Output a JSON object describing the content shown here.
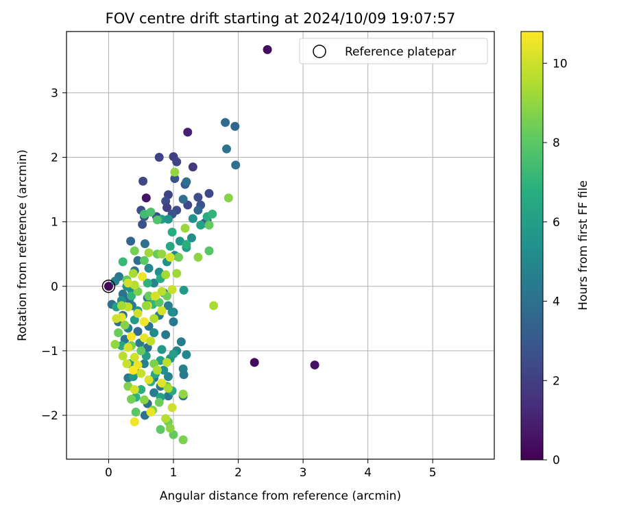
{
  "chart_data": {
    "type": "scatter",
    "title": "FOV centre drift starting at 2024/10/09 19:07:57",
    "xlabel": "Angular distance from reference (arcmin)",
    "ylabel": "Rotation from reference (arcmin)",
    "xlim": [
      -0.65,
      5.95
    ],
    "ylim": [
      -2.68,
      3.95
    ],
    "x_ticks": [
      0,
      1,
      2,
      3,
      4,
      5
    ],
    "y_ticks": [
      -2,
      -1,
      0,
      1,
      2,
      3
    ],
    "grid": true,
    "legend": {
      "position": "top-right",
      "label": "Reference platepar"
    },
    "reference_point": {
      "x": 0,
      "y": 0
    },
    "colorbar": {
      "label": "Hours from first FF file",
      "range": [
        0,
        10.8
      ],
      "ticks": [
        0,
        2,
        4,
        6,
        8,
        10
      ],
      "colormap": "viridis"
    },
    "points": [
      {
        "x": 2.45,
        "y": 3.67,
        "t": 0.3
      },
      {
        "x": 3.18,
        "y": -1.22,
        "t": 0.5
      },
      {
        "x": 2.25,
        "y": -1.18,
        "t": 0.3
      },
      {
        "x": 0.58,
        "y": 1.37,
        "t": 0.6
      },
      {
        "x": 1.22,
        "y": 2.39,
        "t": 1.0
      },
      {
        "x": 0.0,
        "y": 0.0,
        "t": 0.2
      },
      {
        "x": 0.78,
        "y": 2.0,
        "t": 2.1
      },
      {
        "x": 1.0,
        "y": 2.01,
        "t": 2.0
      },
      {
        "x": 1.05,
        "y": 1.93,
        "t": 2.2
      },
      {
        "x": 1.3,
        "y": 1.85,
        "t": 1.8
      },
      {
        "x": 0.53,
        "y": 1.63,
        "t": 2.3
      },
      {
        "x": 1.02,
        "y": 1.67,
        "t": 2.8
      },
      {
        "x": 1.18,
        "y": 1.58,
        "t": 3.0
      },
      {
        "x": 0.92,
        "y": 1.42,
        "t": 2.2
      },
      {
        "x": 0.88,
        "y": 1.32,
        "t": 2.5
      },
      {
        "x": 0.9,
        "y": 1.22,
        "t": 2.0
      },
      {
        "x": 1.38,
        "y": 1.38,
        "t": 2.6
      },
      {
        "x": 1.55,
        "y": 1.44,
        "t": 2.4
      },
      {
        "x": 1.42,
        "y": 1.26,
        "t": 2.8
      },
      {
        "x": 1.22,
        "y": 1.26,
        "t": 2.3
      },
      {
        "x": 1.05,
        "y": 1.18,
        "t": 2.5
      },
      {
        "x": 0.5,
        "y": 1.18,
        "t": 2.6
      },
      {
        "x": 0.55,
        "y": 1.08,
        "t": 3.0
      },
      {
        "x": 0.52,
        "y": 0.96,
        "t": 2.8
      },
      {
        "x": 0.74,
        "y": 1.08,
        "t": 2.4
      },
      {
        "x": 0.98,
        "y": 1.12,
        "t": 2.7
      },
      {
        "x": 1.52,
        "y": 1.02,
        "t": 2.6
      },
      {
        "x": 1.48,
        "y": 0.98,
        "t": 3.1
      },
      {
        "x": 1.38,
        "y": 1.18,
        "t": 3.6
      },
      {
        "x": 1.15,
        "y": 1.35,
        "t": 3.9
      },
      {
        "x": 1.2,
        "y": 1.62,
        "t": 4.0
      },
      {
        "x": 1.8,
        "y": 2.54,
        "t": 3.8
      },
      {
        "x": 1.95,
        "y": 2.48,
        "t": 3.6
      },
      {
        "x": 1.82,
        "y": 2.13,
        "t": 4.1
      },
      {
        "x": 1.96,
        "y": 1.88,
        "t": 3.9
      },
      {
        "x": 0.34,
        "y": 0.7,
        "t": 3.5
      },
      {
        "x": 0.56,
        "y": 0.66,
        "t": 4.0
      },
      {
        "x": 0.45,
        "y": 0.4,
        "t": 3.8
      },
      {
        "x": 0.4,
        "y": 0.24,
        "t": 4.2
      },
      {
        "x": 0.16,
        "y": 0.15,
        "t": 4.4
      },
      {
        "x": 0.1,
        "y": 0.08,
        "t": 4.6
      },
      {
        "x": 0.05,
        "y": -0.28,
        "t": 3.9
      },
      {
        "x": 0.22,
        "y": -0.12,
        "t": 4.1
      },
      {
        "x": 0.32,
        "y": -0.2,
        "t": 3.6
      },
      {
        "x": 0.15,
        "y": -0.55,
        "t": 3.8
      },
      {
        "x": 0.22,
        "y": -0.45,
        "t": 4.0
      },
      {
        "x": 0.36,
        "y": -0.3,
        "t": 4.5
      },
      {
        "x": 0.6,
        "y": -0.18,
        "t": 4.2
      },
      {
        "x": 0.7,
        "y": 0.05,
        "t": 4.8
      },
      {
        "x": 0.85,
        "y": -0.1,
        "t": 4.0
      },
      {
        "x": 0.92,
        "y": -0.3,
        "t": 4.6
      },
      {
        "x": 1.0,
        "y": -0.4,
        "t": 3.9
      },
      {
        "x": 1.0,
        "y": -0.55,
        "t": 4.3
      },
      {
        "x": 0.78,
        "y": -0.45,
        "t": 4.4
      },
      {
        "x": 0.62,
        "y": -0.62,
        "t": 4.1
      },
      {
        "x": 0.45,
        "y": -0.7,
        "t": 3.8
      },
      {
        "x": 0.3,
        "y": -0.65,
        "t": 4.7
      },
      {
        "x": 0.25,
        "y": -0.82,
        "t": 4.2
      },
      {
        "x": 0.48,
        "y": -0.88,
        "t": 4.5
      },
      {
        "x": 0.6,
        "y": -0.95,
        "t": 3.9
      },
      {
        "x": 0.88,
        "y": -0.75,
        "t": 4.3
      },
      {
        "x": 1.05,
        "y": -1.0,
        "t": 4.8
      },
      {
        "x": 1.12,
        "y": -0.86,
        "t": 4.5
      },
      {
        "x": 1.2,
        "y": -1.06,
        "t": 4.9
      },
      {
        "x": 1.15,
        "y": -1.28,
        "t": 4.6
      },
      {
        "x": 1.16,
        "y": -1.37,
        "t": 4.4
      },
      {
        "x": 1.15,
        "y": -1.7,
        "t": 4.2
      },
      {
        "x": 0.92,
        "y": -1.4,
        "t": 4.8
      },
      {
        "x": 0.8,
        "y": -1.55,
        "t": 4.1
      },
      {
        "x": 0.7,
        "y": -1.42,
        "t": 4.0
      },
      {
        "x": 0.55,
        "y": -1.2,
        "t": 4.6
      },
      {
        "x": 0.4,
        "y": -1.3,
        "t": 4.2
      },
      {
        "x": 0.3,
        "y": -1.42,
        "t": 4.4
      },
      {
        "x": 0.56,
        "y": -2.0,
        "t": 4.0
      },
      {
        "x": 0.6,
        "y": -1.82,
        "t": 3.8
      },
      {
        "x": 0.92,
        "y": -1.7,
        "t": 4.3
      },
      {
        "x": 0.7,
        "y": -1.65,
        "t": 4.5
      },
      {
        "x": 0.62,
        "y": 0.28,
        "t": 5.0
      },
      {
        "x": 0.78,
        "y": 0.22,
        "t": 5.2
      },
      {
        "x": 0.9,
        "y": 0.38,
        "t": 5.4
      },
      {
        "x": 1.02,
        "y": 0.48,
        "t": 5.1
      },
      {
        "x": 1.1,
        "y": 0.7,
        "t": 5.6
      },
      {
        "x": 1.28,
        "y": 0.75,
        "t": 5.3
      },
      {
        "x": 1.2,
        "y": 0.6,
        "t": 5.8
      },
      {
        "x": 0.82,
        "y": 1.04,
        "t": 5.9
      },
      {
        "x": 0.92,
        "y": 1.04,
        "t": 5.5
      },
      {
        "x": 1.3,
        "y": 1.05,
        "t": 5.4
      },
      {
        "x": 1.42,
        "y": 0.95,
        "t": 6.2
      },
      {
        "x": 1.52,
        "y": 1.08,
        "t": 6.6
      },
      {
        "x": 1.6,
        "y": 1.12,
        "t": 7.0
      },
      {
        "x": 1.16,
        "y": -0.06,
        "t": 5.8
      },
      {
        "x": 0.98,
        "y": -0.4,
        "t": 5.2
      },
      {
        "x": 0.45,
        "y": -0.38,
        "t": 5.5
      },
      {
        "x": 0.35,
        "y": -0.05,
        "t": 5.0
      },
      {
        "x": 0.28,
        "y": 0.0,
        "t": 5.6
      },
      {
        "x": 0.2,
        "y": -0.22,
        "t": 5.3
      },
      {
        "x": 0.12,
        "y": -0.32,
        "t": 6.0
      },
      {
        "x": 0.4,
        "y": -0.52,
        "t": 5.8
      },
      {
        "x": 0.7,
        "y": -0.72,
        "t": 5.1
      },
      {
        "x": 0.82,
        "y": -0.98,
        "t": 5.7
      },
      {
        "x": 0.95,
        "y": -1.12,
        "t": 5.4
      },
      {
        "x": 0.8,
        "y": -1.15,
        "t": 6.1
      },
      {
        "x": 0.85,
        "y": -1.3,
        "t": 5.3
      },
      {
        "x": 1.0,
        "y": -1.05,
        "t": 6.0
      },
      {
        "x": 0.58,
        "y": -1.08,
        "t": 5.9
      },
      {
        "x": 0.33,
        "y": -1.2,
        "t": 6.2
      },
      {
        "x": 0.38,
        "y": -1.4,
        "t": 5.6
      },
      {
        "x": 0.2,
        "y": -0.92,
        "t": 6.3
      },
      {
        "x": 0.72,
        "y": -1.36,
        "t": 6.4
      },
      {
        "x": 0.65,
        "y": -1.48,
        "t": 6.6
      },
      {
        "x": 0.5,
        "y": -1.6,
        "t": 6.8
      },
      {
        "x": 0.42,
        "y": -1.72,
        "t": 6.9
      },
      {
        "x": 0.8,
        "y": -1.72,
        "t": 6.2
      },
      {
        "x": 0.98,
        "y": -1.62,
        "t": 6.5
      },
      {
        "x": 0.95,
        "y": 0.62,
        "t": 6.4
      },
      {
        "x": 0.98,
        "y": 0.84,
        "t": 6.6
      },
      {
        "x": 1.2,
        "y": 0.65,
        "t": 6.8
      },
      {
        "x": 0.8,
        "y": 0.12,
        "t": 6.6
      },
      {
        "x": 0.6,
        "y": 0.05,
        "t": 6.9
      },
      {
        "x": 0.68,
        "y": -0.28,
        "t": 7.1
      },
      {
        "x": 0.55,
        "y": 1.12,
        "t": 7.4
      },
      {
        "x": 0.65,
        "y": 1.15,
        "t": 7.6
      },
      {
        "x": 0.75,
        "y": 1.03,
        "t": 7.8
      },
      {
        "x": 0.22,
        "y": 0.38,
        "t": 7.2
      },
      {
        "x": 0.35,
        "y": -0.15,
        "t": 7.0
      },
      {
        "x": 1.55,
        "y": 0.55,
        "t": 7.9
      },
      {
        "x": 1.55,
        "y": 0.95,
        "t": 8.2
      },
      {
        "x": 1.85,
        "y": 1.37,
        "t": 8.8
      },
      {
        "x": 1.02,
        "y": 1.77,
        "t": 9.0
      },
      {
        "x": 1.18,
        "y": 0.9,
        "t": 9.1
      },
      {
        "x": 1.38,
        "y": 0.45,
        "t": 8.9
      },
      {
        "x": 1.08,
        "y": 0.45,
        "t": 8.4
      },
      {
        "x": 0.75,
        "y": 0.5,
        "t": 8.2
      },
      {
        "x": 0.55,
        "y": 0.4,
        "t": 8.0
      },
      {
        "x": 0.4,
        "y": 0.55,
        "t": 8.5
      },
      {
        "x": 0.28,
        "y": 0.1,
        "t": 8.1
      },
      {
        "x": 0.45,
        "y": -0.08,
        "t": 8.6
      },
      {
        "x": 0.62,
        "y": -0.15,
        "t": 8.3
      },
      {
        "x": 0.78,
        "y": -0.25,
        "t": 8.0
      },
      {
        "x": 0.9,
        "y": -0.15,
        "t": 8.4
      },
      {
        "x": 1.05,
        "y": 0.2,
        "t": 9.2
      },
      {
        "x": 1.62,
        "y": -0.3,
        "t": 9.4
      },
      {
        "x": 0.15,
        "y": -0.72,
        "t": 8.3
      },
      {
        "x": 0.25,
        "y": -0.6,
        "t": 8.8
      },
      {
        "x": 0.35,
        "y": -0.92,
        "t": 8.5
      },
      {
        "x": 0.5,
        "y": -1.0,
        "t": 8.2
      },
      {
        "x": 0.7,
        "y": -1.2,
        "t": 8.6
      },
      {
        "x": 0.9,
        "y": -1.55,
        "t": 8.0
      },
      {
        "x": 0.78,
        "y": -1.8,
        "t": 8.3
      },
      {
        "x": 0.68,
        "y": -1.92,
        "t": 8.7
      },
      {
        "x": 0.8,
        "y": -2.22,
        "t": 8.1
      },
      {
        "x": 0.92,
        "y": -2.1,
        "t": 8.4
      },
      {
        "x": 1.0,
        "y": -2.3,
        "t": 8.2
      },
      {
        "x": 1.15,
        "y": -2.38,
        "t": 8.6
      },
      {
        "x": 0.95,
        "y": -2.2,
        "t": 8.9
      },
      {
        "x": 0.42,
        "y": -1.95,
        "t": 8.0
      },
      {
        "x": 0.35,
        "y": -1.75,
        "t": 8.5
      },
      {
        "x": 0.55,
        "y": -1.76,
        "t": 8.8
      },
      {
        "x": 1.15,
        "y": -1.67,
        "t": 9.0
      },
      {
        "x": 0.3,
        "y": -1.55,
        "t": 8.7
      },
      {
        "x": 0.1,
        "y": -0.9,
        "t": 9.0
      },
      {
        "x": 0.4,
        "y": 0.02,
        "t": 9.6
      },
      {
        "x": 0.3,
        "y": 0.05,
        "t": 10.0
      },
      {
        "x": 0.52,
        "y": 0.15,
        "t": 10.5
      },
      {
        "x": 0.95,
        "y": 0.45,
        "t": 10.2
      },
      {
        "x": 0.98,
        "y": -0.05,
        "t": 9.9
      },
      {
        "x": 0.82,
        "y": -0.08,
        "t": 9.7
      },
      {
        "x": 0.72,
        "y": -0.15,
        "t": 10.1
      },
      {
        "x": 0.6,
        "y": -0.3,
        "t": 10.4
      },
      {
        "x": 0.45,
        "y": -0.42,
        "t": 10.0
      },
      {
        "x": 0.3,
        "y": -0.32,
        "t": 9.8
      },
      {
        "x": 0.2,
        "y": -0.48,
        "t": 10.3
      },
      {
        "x": 0.55,
        "y": -0.55,
        "t": 10.6
      },
      {
        "x": 0.7,
        "y": -0.5,
        "t": 9.5
      },
      {
        "x": 0.82,
        "y": -0.38,
        "t": 10.1
      },
      {
        "x": 0.35,
        "y": -0.78,
        "t": 10.7
      },
      {
        "x": 0.55,
        "y": -0.8,
        "t": 10.4
      },
      {
        "x": 0.65,
        "y": -0.85,
        "t": 9.8
      },
      {
        "x": 0.3,
        "y": -0.95,
        "t": 10.2
      },
      {
        "x": 0.22,
        "y": -1.08,
        "t": 9.6
      },
      {
        "x": 0.4,
        "y": -1.1,
        "t": 10.0
      },
      {
        "x": 0.45,
        "y": -1.22,
        "t": 10.5
      },
      {
        "x": 0.38,
        "y": -1.3,
        "t": 10.8
      },
      {
        "x": 0.5,
        "y": -1.35,
        "t": 9.9
      },
      {
        "x": 0.62,
        "y": -1.45,
        "t": 10.2
      },
      {
        "x": 0.75,
        "y": -1.3,
        "t": 9.5
      },
      {
        "x": 0.9,
        "y": -1.18,
        "t": 9.7
      },
      {
        "x": 0.82,
        "y": -1.5,
        "t": 10.3
      },
      {
        "x": 0.92,
        "y": -1.58,
        "t": 9.4
      },
      {
        "x": 0.98,
        "y": -1.88,
        "t": 10.0
      },
      {
        "x": 0.88,
        "y": -2.05,
        "t": 9.6
      },
      {
        "x": 0.65,
        "y": -1.95,
        "t": 10.4
      },
      {
        "x": 0.4,
        "y": -1.6,
        "t": 10.1
      },
      {
        "x": 0.28,
        "y": -1.2,
        "t": 9.9
      },
      {
        "x": 0.4,
        "y": -2.1,
        "t": 10.6
      },
      {
        "x": 0.12,
        "y": -0.5,
        "t": 10.0
      },
      {
        "x": 0.2,
        "y": -0.3,
        "t": 9.3
      },
      {
        "x": 0.62,
        "y": 0.52,
        "t": 9.2
      },
      {
        "x": 0.82,
        "y": 0.5,
        "t": 9.0
      },
      {
        "x": 0.38,
        "y": 0.2,
        "t": 9.4
      },
      {
        "x": 0.58,
        "y": -0.3,
        "t": 9.1
      },
      {
        "x": 0.88,
        "y": 0.18,
        "t": 9.3
      }
    ]
  }
}
